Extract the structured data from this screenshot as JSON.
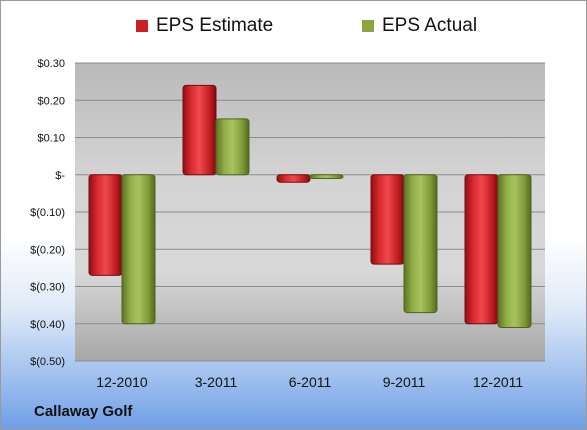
{
  "chart_data": {
    "type": "bar",
    "categories": [
      "12-2010",
      "3-2011",
      "6-2011",
      "9-2011",
      "12-2011"
    ],
    "series": [
      {
        "name": "EPS Estimate",
        "color": "#cc1f25",
        "values": [
          -0.27,
          0.24,
          -0.02,
          -0.24,
          -0.4
        ]
      },
      {
        "name": "EPS Actual",
        "color": "#8aa63f",
        "values": [
          -0.4,
          0.15,
          -0.01,
          -0.37,
          -0.41
        ]
      }
    ],
    "ylim": [
      -0.5,
      0.3
    ],
    "yticks": [
      0.3,
      0.2,
      0.1,
      0,
      -0.1,
      -0.2,
      -0.3,
      -0.4,
      -0.5
    ],
    "ytick_labels": [
      "$0.30",
      "$0.20",
      "$0.10",
      "$-",
      "$(0.10)",
      "$(0.20)",
      "$(0.30)",
      "$(0.40)",
      "$(0.50)"
    ],
    "grid": true,
    "legend_position": "top"
  },
  "footer": {
    "company": "Callaway Golf"
  }
}
